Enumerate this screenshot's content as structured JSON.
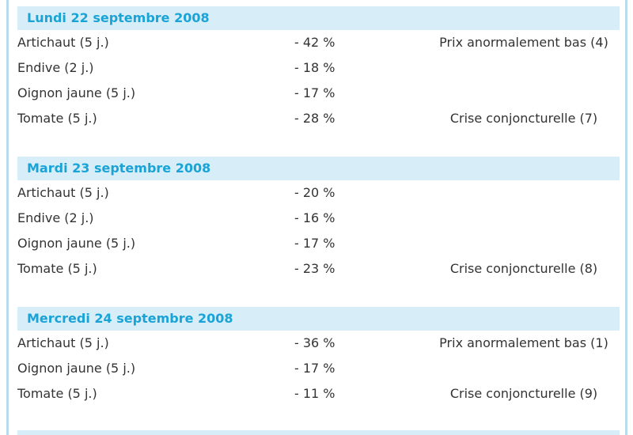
{
  "sections": [
    {
      "title": "Lundi 22 septembre 2008",
      "rows": [
        {
          "product": "Artichaut (5 j.)",
          "change": "- 42 %",
          "status": "Prix anormalement bas (4)"
        },
        {
          "product": "Endive (2 j.)",
          "change": "- 18 %"
        },
        {
          "product": "Oignon jaune (5 j.)",
          "change": "- 17 %"
        },
        {
          "product": "Tomate (5 j.)",
          "change": "- 28 %",
          "status": "Crise conjoncturelle (7)"
        }
      ]
    },
    {
      "title": "Mardi 23 septembre 2008",
      "rows": [
        {
          "product": "Artichaut (5 j.)",
          "change": "- 20 %"
        },
        {
          "product": "Endive (2 j.)",
          "change": "- 16 %"
        },
        {
          "product": "Oignon jaune (5 j.)",
          "change": "- 17 %"
        },
        {
          "product": "Tomate (5 j.)",
          "change": "- 23 %",
          "status": "Crise conjoncturelle (8)"
        }
      ]
    },
    {
      "title": "Mercredi 24 septembre 2008",
      "rows": [
        {
          "product": "Artichaut (5 j.)",
          "change": "- 36 %",
          "status": "Prix anormalement bas (1)"
        },
        {
          "product": "Oignon jaune (5 j.)",
          "change": "- 17 %"
        },
        {
          "product": "Tomate (5 j.)",
          "change": "- 11 %",
          "status": "Crise conjoncturelle (9)"
        }
      ]
    }
  ]
}
